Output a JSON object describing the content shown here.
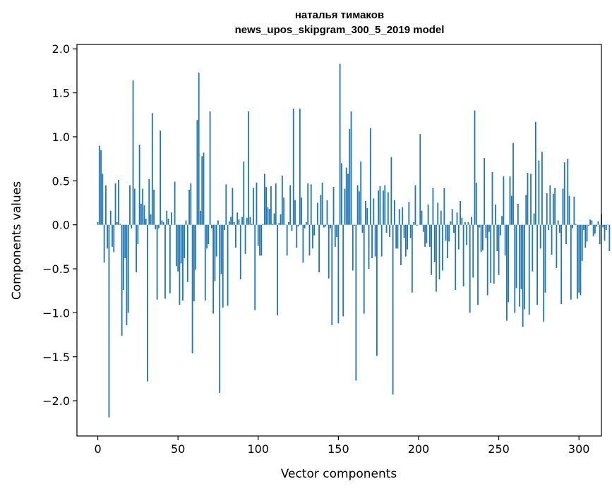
{
  "chart_data": {
    "type": "bar",
    "title": "наталья тимаков",
    "subtitle": "news_upos_skipgram_300_5_2019 model",
    "xlabel": "Vector components",
    "ylabel": "Components values",
    "xlim": [
      -13,
      314
    ],
    "ylim": [
      -2.4,
      2.05
    ],
    "xticks": [
      0,
      50,
      100,
      150,
      200,
      250,
      300
    ],
    "yticks": [
      -2.0,
      -1.5,
      -1.0,
      -0.5,
      0.0,
      0.5,
      1.0,
      1.5,
      2.0
    ],
    "ytick_labels": [
      "−2.0",
      "−1.5",
      "−1.0",
      "−0.5",
      "0.0",
      "0.5",
      "1.0",
      "1.5",
      "2.0"
    ],
    "grid": false,
    "bar_color": "#1f77b4",
    "values": [
      0.03,
      0.9,
      0.85,
      0.58,
      -0.43,
      0.45,
      -0.27,
      -2.19,
      0.16,
      -0.25,
      -0.31,
      0.47,
      0.03,
      0.51,
      0.01,
      -1.26,
      -0.74,
      -0.38,
      -1.14,
      -1.0,
      0.45,
      -0.04,
      1.64,
      0.41,
      -0.54,
      -0.22,
      0.91,
      0.24,
      0.41,
      0.22,
      0.07,
      -1.78,
      0.52,
      0.12,
      1.27,
      0.4,
      -0.05,
      -0.85,
      -0.04,
      1.07,
      0.05,
      0.03,
      -0.84,
      0.16,
      0.07,
      -0.78,
      0.14,
      0.0,
      0.49,
      -0.47,
      -0.53,
      -0.91,
      -0.44,
      -0.86,
      -0.38,
      0.05,
      -0.65,
      0.4,
      0.47,
      -1.46,
      -0.87,
      -0.51,
      1.19,
      1.73,
      0.16,
      0.78,
      0.82,
      -0.86,
      -0.27,
      -0.22,
      1.29,
      -0.04,
      -1.01,
      -0.64,
      -0.36,
      0.05,
      -1.91,
      -0.56,
      -0.94,
      -0.06,
      0.46,
      -0.92,
      0.04,
      0.09,
      0.42,
      0.03,
      -0.26,
      0.14,
      0.06,
      -0.62,
      0.09,
      0.72,
      -0.33,
      0.08,
      1.29,
      0.09,
      0.01,
      0.42,
      -0.97,
      0.48,
      -0.24,
      -0.35,
      -0.35,
      0.01,
      0.58,
      0.43,
      0.2,
      0.18,
      0.44,
      0.01,
      0.13,
      0.47,
      -1.03,
      0.02,
      0.12,
      0.56,
      0.31,
      0.0,
      -0.35,
      0.03,
      0.45,
      -0.07,
      1.32,
      0.28,
      -0.26,
      -0.02,
      1.32,
      0.31,
      -0.43,
      -0.04,
      0.03,
      0.47,
      -0.35,
      0.46,
      -0.27,
      -0.12,
      0.0,
      0.25,
      -0.54,
      0.34,
      0.48,
      -0.03,
      -0.02,
      0.28,
      -0.61,
      -0.04,
      -1.14,
      0.43,
      -0.25,
      -0.14,
      -1.12,
      1.83,
      0.7,
      -1.04,
      0.41,
      0.65,
      0.58,
      1.09,
      1.29,
      -0.52,
      -0.01,
      -1.77,
      0.45,
      0.38,
      0.72,
      -0.09,
      -1.01,
      0.27,
      0.19,
      -0.5,
      1.1,
      -0.38,
      0.3,
      -0.36,
      -1.49,
      0.39,
      0.44,
      -0.36,
      0.39,
      0.45,
      -0.09,
      0.37,
      -0.14,
      0.77,
      -1.93,
      0.28,
      -0.27,
      -0.27,
      0.18,
      -0.46,
      0.2,
      -0.15,
      -0.36,
      -0.28,
      0.26,
      -0.15,
      -0.77,
      0.03,
      0.45,
      -0.01,
      0.0,
      1.03,
      0.16,
      -0.08,
      -0.25,
      -0.21,
      0.23,
      -0.25,
      -0.57,
      0.42,
      -0.42,
      -0.76,
      0.25,
      -0.62,
      0.16,
      -0.52,
      0.42,
      -0.18,
      -0.38,
      -0.19,
      0.04,
      0.18,
      -0.09,
      -0.74,
      0.14,
      -0.28,
      0.27,
      0.08,
      -0.7,
      0.03,
      -0.23,
      0.03,
      -1.0,
      0.09,
      -0.6,
      1.3,
      0.48,
      -0.91,
      -0.03,
      -0.31,
      -0.29,
      0.76,
      -0.15,
      -0.8,
      -0.08,
      -0.66,
      0.6,
      -0.67,
      0.23,
      -0.3,
      -0.57,
      -0.12,
      0.1,
      0.55,
      -0.35,
      -1.09,
      -0.88,
      0.55,
      0.33,
      0.93,
      -1.0,
      -0.72,
      0.24,
      -0.93,
      -0.73,
      -1.16,
      -0.96,
      0.34,
      0.59,
      -1.02,
      0.58,
      -0.53,
      0.13,
      1.17,
      -0.91,
      0.73,
      -0.27,
      0.83,
      -1.1,
      -0.77,
      0.36,
      -0.06,
      0.45,
      -0.34,
      0.35,
      0.42,
      -0.49,
      0.05,
      -0.09,
      -0.9,
      0.41,
      0.71,
      -0.22,
      0.75,
      0.33,
      -0.85,
      -0.04,
      0.32,
      0.01,
      -0.84,
      -0.77,
      -0.8,
      -0.41,
      -0.06,
      -0.26,
      -0.19,
      -0.01,
      0.06,
      0.05,
      -0.13,
      -0.1,
      -0.02,
      0.04,
      -0.22,
      0.12,
      -0.03,
      -0.18,
      -0.06,
      0.0,
      -0.3
    ]
  }
}
